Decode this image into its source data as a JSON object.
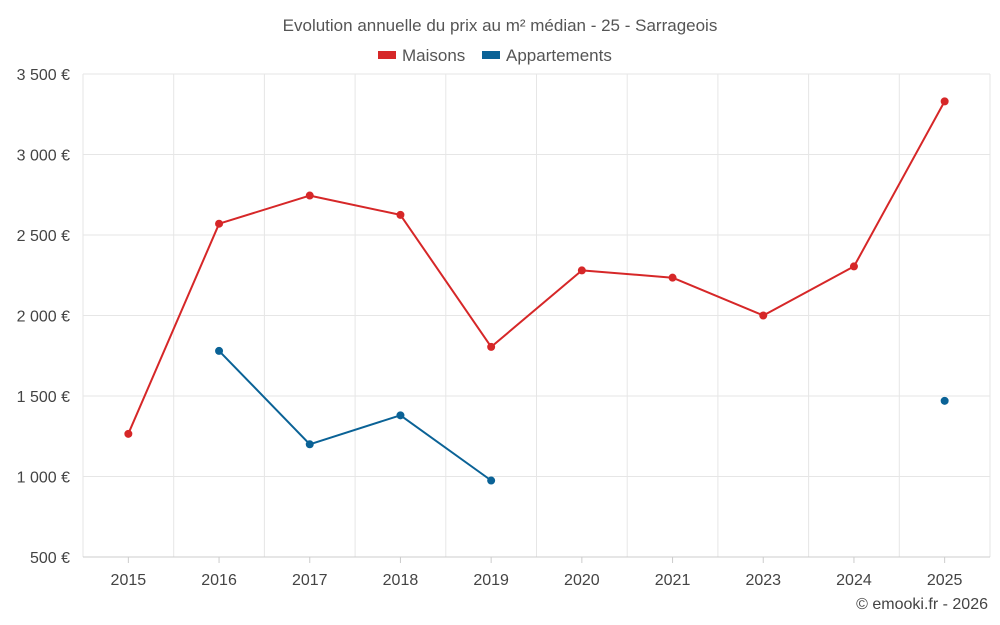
{
  "chart_data": {
    "type": "line",
    "title": "Evolution annuelle du prix au m² médian - 25 - Sarrageois",
    "categories": [
      "2015",
      "2016",
      "2017",
      "2018",
      "2019",
      "2020",
      "2021",
      "2023",
      "2024",
      "2025"
    ],
    "series": [
      {
        "name": "Maisons",
        "color": "#d62728",
        "values": [
          1265,
          2570,
          2745,
          2625,
          1805,
          2280,
          2235,
          2000,
          2305,
          3330
        ]
      },
      {
        "name": "Appartements",
        "color": "#0a6296",
        "values": [
          null,
          1780,
          1200,
          1380,
          975,
          null,
          null,
          null,
          null,
          1470
        ]
      }
    ],
    "ylim": [
      500,
      3500
    ],
    "yticks": [
      500,
      1000,
      1500,
      2000,
      2500,
      3000,
      3500
    ],
    "ytick_labels": [
      "500 €",
      "1 000 €",
      "1 500 €",
      "2 000 €",
      "2 500 €",
      "3 000 €",
      "3 500 €"
    ],
    "xlabel": "",
    "ylabel": "",
    "legend_position": "top-center",
    "grid": true
  },
  "credit": "© emooki.fr - 2026"
}
